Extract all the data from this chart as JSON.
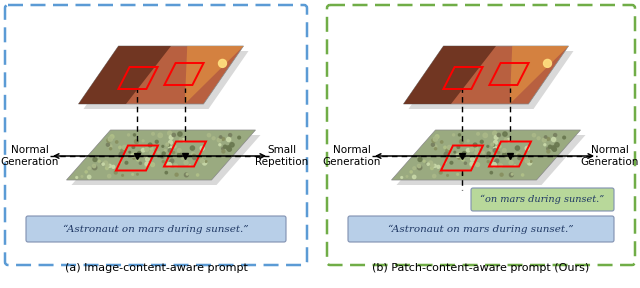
{
  "fig_width": 6.4,
  "fig_height": 2.88,
  "dpi": 100,
  "background_color": "#ffffff",
  "left_panel": {
    "border_color": "#5b9bd5",
    "title": "(a) Image-content-aware prompt",
    "label_left": "Normal\nGeneration",
    "label_right": "Small\nRepetition",
    "prompt_text": "“Astronaut on mars during sunset.”",
    "prompt_bg": "#b8cfe8",
    "prompt_color": "#1f3864"
  },
  "right_panel": {
    "border_color": "#70ad47",
    "title": "(b) Patch-content-aware prompt (Ours)",
    "label_left": "Normal\nGeneration",
    "label_right": "Normal\nGeneration",
    "prompt_text": "“Astronaut on mars during sunset.”",
    "prompt_bg": "#b8cfe8",
    "prompt_color": "#1f3864",
    "patch_prompt_text": "“on mars during sunset.”",
    "patch_prompt_bg": "#b8d89a",
    "patch_prompt_color": "#1f3864"
  }
}
